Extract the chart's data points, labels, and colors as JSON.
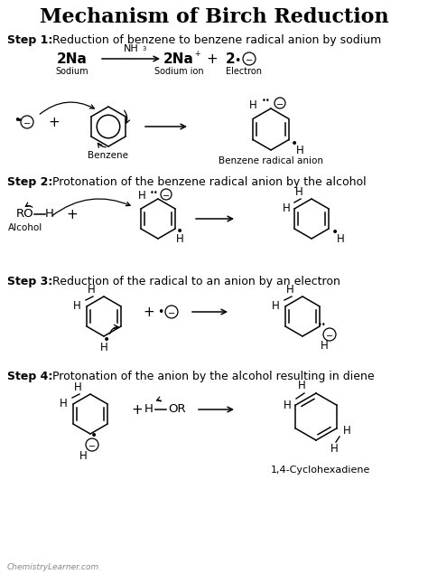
{
  "title": "Mechanism of Birch Reduction",
  "bg_color": "#ffffff",
  "text_color": "#000000",
  "title_fontsize": 16,
  "step_bold_fontsize": 9,
  "label_fontsize": 8,
  "watermark": "ChemistryLearner.com",
  "step1_header": "Step 1: Reduction of benzene to benzene radical anion by sodium",
  "step2_header": "Step 2: Protonation of the benzene radical anion by the alcohol",
  "step3_header": "Step 3: Reduction of the radical to an anion by an electron",
  "step4_header": "Step 4: Protonation of the anion by the alcohol resulting in diene"
}
